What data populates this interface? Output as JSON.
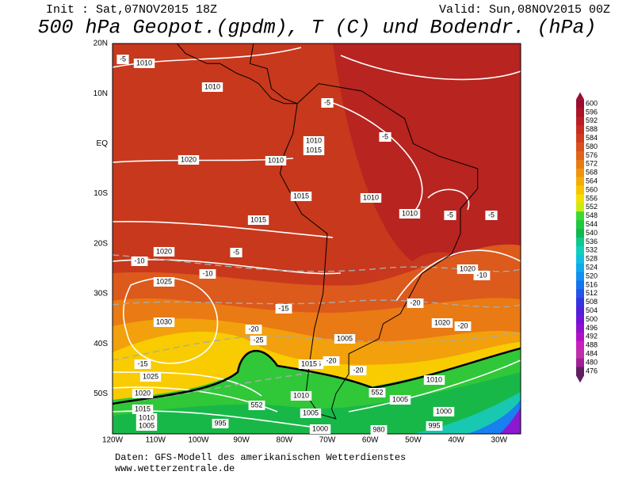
{
  "header": {
    "init": "Init : Sat,07NOV2015 18Z",
    "valid": "Valid: Sun,08NOV2015 00Z",
    "title": "500 hPa Geopot.(gpdm), T (C) und Bodendr. (hPa)"
  },
  "map": {
    "lat_labels": [
      "20N",
      "10N",
      "EQ",
      "10S",
      "20S",
      "30S",
      "40S",
      "50S"
    ],
    "lon_labels": [
      "120W",
      "110W",
      "100W",
      "90W",
      "80W",
      "70W",
      "60W",
      "50W",
      "40W",
      "30W"
    ],
    "contour_labels": [
      "1010",
      "1010",
      "1010",
      "1015",
      "1015",
      "1015",
      "1020",
      "1020",
      "1025",
      "1030",
      "1025",
      "1020",
      "1015",
      "1010",
      "1005",
      "995",
      "1010",
      "1005",
      "1000",
      "1005",
      "1015",
      "1010",
      "1005",
      "1000",
      "995",
      "980",
      "1020",
      "1020",
      "1010",
      "1015",
      "1010",
      "1010",
      "-5",
      "-5",
      "-5",
      "-5",
      "-10",
      "-10",
      "-10",
      "-15",
      "-15",
      "-20",
      "-20",
      "-25",
      "-20",
      "-20",
      "-20",
      "552",
      "552",
      "-5",
      "-5"
    ]
  },
  "colorbar": {
    "labels": [
      "600",
      "596",
      "592",
      "588",
      "584",
      "580",
      "576",
      "572",
      "568",
      "564",
      "560",
      "556",
      "552",
      "548",
      "544",
      "540",
      "536",
      "532",
      "528",
      "524",
      "520",
      "516",
      "512",
      "508",
      "504",
      "500",
      "496",
      "492",
      "488",
      "484",
      "480",
      "476"
    ],
    "colors": [
      "#9c0c30",
      "#ac1428",
      "#bc1c24",
      "#c82c20",
      "#d03c1c",
      "#d8501c",
      "#e06418",
      "#e87c14",
      "#f09410",
      "#f4ac08",
      "#f8c400",
      "#f4e000",
      "#c8ec10",
      "#3cd834",
      "#20c840",
      "#10b850",
      "#10c88c",
      "#10d0bc",
      "#10c0e0",
      "#10a8f0",
      "#1090f0",
      "#1474f0",
      "#2454ec",
      "#3434e0",
      "#5020dc",
      "#7014d8",
      "#9010d0",
      "#b010c4",
      "#c820bc",
      "#c030a8",
      "#a02098",
      "#602060"
    ]
  },
  "footer": {
    "source": "Daten: GFS-Modell des amerikanischen Wetterdienstes",
    "url": "www.wetterzentrale.de"
  }
}
